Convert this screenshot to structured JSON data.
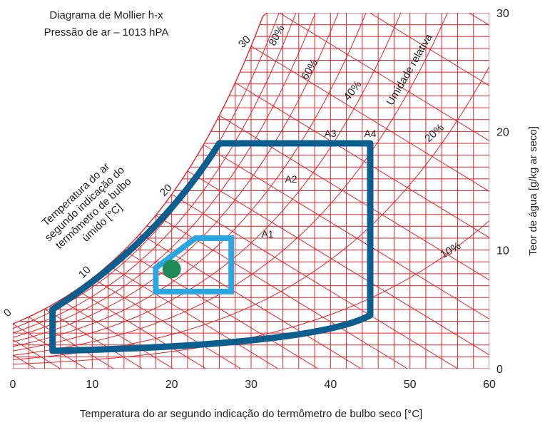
{
  "chart_data": {
    "type": "psychrometric",
    "title_lines": [
      "Diagrama de Mollier h-x",
      "Pressão de ar – 1013 hPA"
    ],
    "xlabel": "Temperatura do ar segundo indicação do termômetro de bulbo seco [°C]",
    "ylabel": "Teor de água [g/kg ar seco]",
    "xlim": [
      0,
      60
    ],
    "ylim": [
      0,
      30
    ],
    "x_ticks": [
      "0",
      "10",
      "20",
      "30",
      "40",
      "50",
      "60"
    ],
    "y_ticks": [
      "0",
      "10",
      "20",
      "30"
    ],
    "grid": true,
    "relative_humidity_title": "Umidade relativa",
    "relative_humidity_labels": [
      {
        "text": "80%",
        "rh": 0.8
      },
      {
        "text": "60%",
        "rh": 0.6
      },
      {
        "text": "40%",
        "rh": 0.4
      },
      {
        "text": "20%",
        "rh": 0.2
      },
      {
        "text": "10%",
        "rh": 0.1
      }
    ],
    "wet_bulb_title_lines": [
      "Temperatura do ar",
      "segundo indicação do",
      "termômetro de bulbo",
      "úmido [°C]"
    ],
    "wet_bulb_labels": [
      "0",
      "10",
      "20",
      "30"
    ],
    "zone_labels": [
      "A1",
      "A2",
      "A3",
      "A4"
    ],
    "colors": {
      "grid": "#e3242b",
      "outer_zone": "#0b5f8e",
      "inner_zone": "#2aa7e1",
      "point": "#1e8a5a"
    },
    "outer_zone": [
      [
        5,
        1.5
      ],
      [
        5,
        5
      ],
      [
        26,
        19
      ],
      [
        45,
        19
      ],
      [
        45,
        4.5
      ],
      [
        5,
        1.5
      ]
    ],
    "inner_zone": [
      [
        18,
        6.5
      ],
      [
        18,
        8.5
      ],
      [
        23,
        11
      ],
      [
        27.5,
        11
      ],
      [
        27.5,
        6.5
      ]
    ],
    "point": {
      "t": 20,
      "x": 8.4
    }
  }
}
